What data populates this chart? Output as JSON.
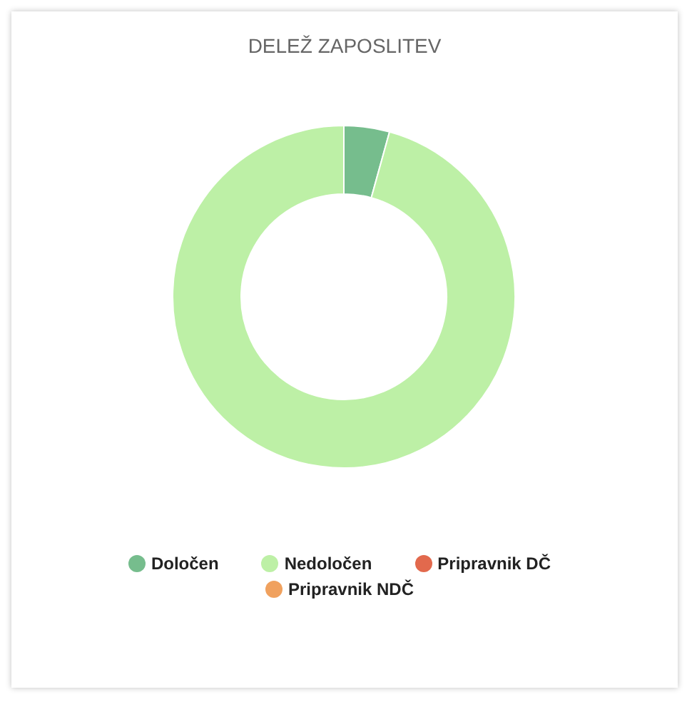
{
  "chart_data": {
    "type": "donut",
    "title": "DELEŽ ZAPOSLITEV",
    "categories": [
      "Določen",
      "Nedoločen",
      "Pripravnik NDČ",
      "Pripravnik DČ"
    ],
    "values": [
      4.3,
      95.7,
      0,
      0
    ],
    "colors": [
      "#76bd8d",
      "#bdf0a6",
      "#f0a15e",
      "#e2694d"
    ],
    "legend": "bottom"
  }
}
